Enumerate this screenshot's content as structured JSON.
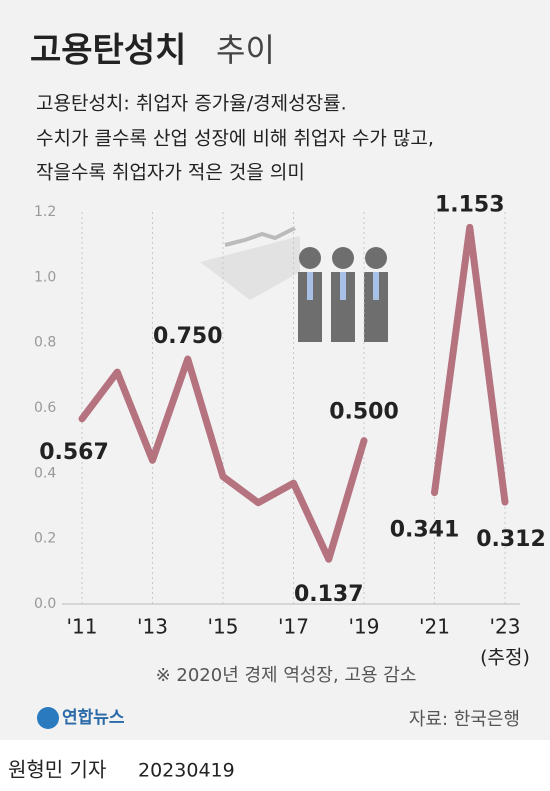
{
  "chart_data": {
    "type": "line",
    "title": "고용탄성치",
    "title_suffix": "추이",
    "subtitle": [
      "고용탄성치: 취업자 증가율/경제성장률.",
      "수치가 클수록 산업 성장에 비해 취업자 수가 많고,",
      "작을수록 취업자가 적은 것을 의미"
    ],
    "categories": [
      "'11",
      null,
      "'13",
      null,
      "'15",
      null,
      "'17",
      null,
      "'19",
      null,
      "'21",
      null,
      "'23"
    ],
    "category_note": "(추정)",
    "values": [
      0.567,
      0.71,
      0.44,
      0.75,
      0.39,
      0.31,
      0.37,
      0.137,
      0.5,
      null,
      0.341,
      1.153,
      0.312
    ],
    "value_labels": [
      "0.567",
      null,
      null,
      "0.750",
      null,
      null,
      null,
      "0.137",
      "0.500",
      null,
      "0.341",
      "1.153",
      "0.312"
    ],
    "color": "#b5727f",
    "ylim": [
      0,
      1.2
    ],
    "yticks": [
      {
        "value": 0,
        "label": "0.0"
      },
      0.2,
      0.4,
      0.6,
      0.8,
      {
        "value": 1,
        "label": "1.0"
      },
      1.2
    ],
    "grid": true,
    "note": "※ 2020년 경제 역성장, 고용 감소",
    "logo": "연합뉴스",
    "source": "자료: 한국은행",
    "byline": "원형민 기자",
    "date": "20230419"
  }
}
